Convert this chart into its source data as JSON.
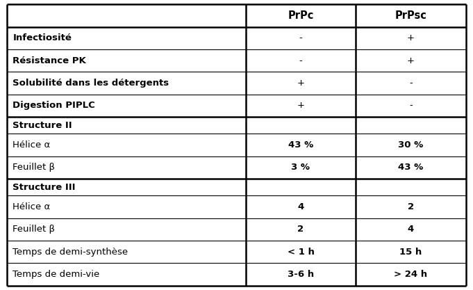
{
  "col_headers": [
    "",
    "PrPc",
    "PrPsc"
  ],
  "rows": [
    {
      "label": "Infectiosité",
      "bold": true,
      "prpc": "-",
      "prpsc": "+",
      "prpc_bold": false,
      "prpsc_bold": false,
      "section_header": false
    },
    {
      "label": "Résistance PK",
      "bold": true,
      "prpc": "-",
      "prpsc": "+",
      "prpc_bold": false,
      "prpsc_bold": false,
      "section_header": false
    },
    {
      "label": "Solubilité dans les détergents",
      "bold": true,
      "prpc": "+",
      "prpsc": "-",
      "prpc_bold": false,
      "prpsc_bold": false,
      "section_header": false
    },
    {
      "label": "Digestion PIPLC",
      "bold": true,
      "prpc": "+",
      "prpsc": "-",
      "prpc_bold": false,
      "prpsc_bold": false,
      "section_header": false
    },
    {
      "label": "Structure II",
      "bold": true,
      "prpc": "",
      "prpsc": "",
      "prpc_bold": false,
      "prpsc_bold": false,
      "section_header": true
    },
    {
      "label": "Hélice α",
      "bold": false,
      "prpc": "43 %",
      "prpsc": "30 %",
      "prpc_bold": true,
      "prpsc_bold": true,
      "section_header": false
    },
    {
      "label": "Feuillet β",
      "bold": false,
      "prpc": "3 %",
      "prpsc": "43 %",
      "prpc_bold": true,
      "prpsc_bold": true,
      "section_header": false
    },
    {
      "label": "Structure III",
      "bold": true,
      "prpc": "",
      "prpsc": "",
      "prpc_bold": false,
      "prpsc_bold": false,
      "section_header": true
    },
    {
      "label": "Hélice α",
      "bold": false,
      "prpc": "4",
      "prpsc": "2",
      "prpc_bold": true,
      "prpsc_bold": true,
      "section_header": false
    },
    {
      "label": "Feuillet β",
      "bold": false,
      "prpc": "2",
      "prpsc": "4",
      "prpc_bold": true,
      "prpsc_bold": true,
      "section_header": false
    },
    {
      "label": "Temps de demi-synthèse",
      "bold": false,
      "prpc": "< 1 h",
      "prpsc": "15 h",
      "prpc_bold": true,
      "prpsc_bold": true,
      "section_header": false
    },
    {
      "label": "Temps de demi-vie",
      "bold": false,
      "prpc": "3-6 h",
      "prpsc": "> 24 h",
      "prpc_bold": true,
      "prpsc_bold": true,
      "section_header": false
    }
  ],
  "background_color": "#ffffff",
  "text_color": "#000000",
  "border_color": "#000000",
  "header_fontsize": 10.5,
  "body_fontsize": 9.5,
  "fig_width": 6.81,
  "fig_height": 4.17,
  "dpi": 100
}
